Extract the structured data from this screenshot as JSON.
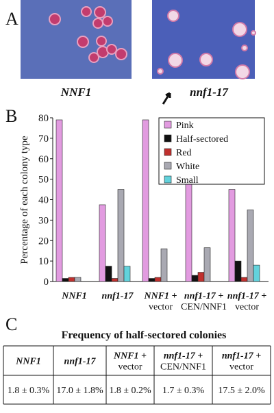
{
  "panel_labels": [
    "A",
    "B",
    "C"
  ],
  "panel_a": {
    "captions": [
      "NNF1",
      "nnf1-17"
    ]
  },
  "chart_data": {
    "type": "bar",
    "ylabel": "Percentage of each colony type",
    "categories": [
      "NNF1",
      "nnf1-17",
      "NNF1 +\nvector",
      "nnf1-17 +\nCEN/NNF1",
      "nnf1-17 +\nvector"
    ],
    "series": [
      {
        "name": "Pink",
        "color": "#e29be0",
        "values": [
          79,
          37.5,
          79,
          78,
          45
        ]
      },
      {
        "name": "Half-sectored",
        "color": "#111111",
        "values": [
          1.5,
          7.5,
          1.5,
          3,
          10
        ]
      },
      {
        "name": "Red",
        "color": "#c0302e",
        "values": [
          2,
          1.5,
          2,
          4.5,
          2
        ]
      },
      {
        "name": "White",
        "color": "#a9a9b2",
        "values": [
          2,
          45,
          16,
          16.5,
          35
        ]
      },
      {
        "name": "Small",
        "color": "#62d2dc",
        "values": [
          0,
          7.5,
          0,
          0,
          8
        ]
      }
    ],
    "ylim": [
      0,
      80
    ],
    "yticks": [
      0,
      10,
      20,
      30,
      40,
      50,
      60,
      70,
      80
    ],
    "legend": "upper right"
  },
  "table": {
    "title": "Frequency of half-sectored colonies",
    "rows": [
      [
        "NNF1",
        "nnf1-17",
        "NNF1 +\nvector",
        "nnf1-17 +\nCEN/NNF1",
        "nnf1-17 +\nvector"
      ],
      [
        "1.8 ± 0.3%",
        "17.0 ± 1.8%",
        "1.8 ± 0.2%",
        "1.7 ± 0.3%",
        "17.5 ± 2.0%"
      ]
    ]
  }
}
